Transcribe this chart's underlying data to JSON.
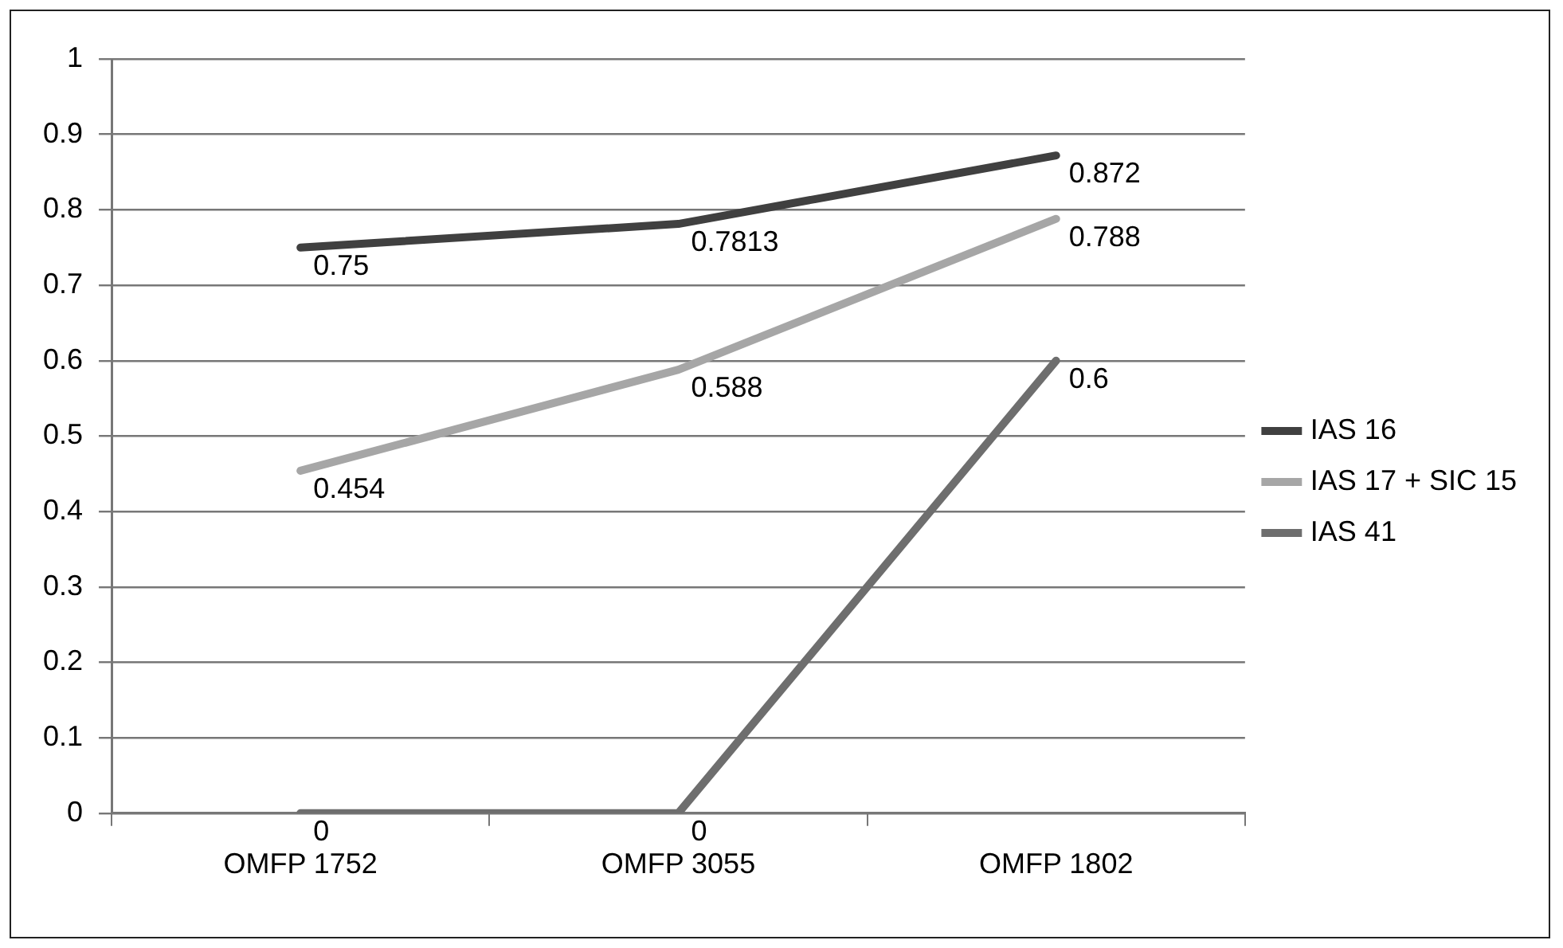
{
  "chart_data": {
    "type": "line",
    "categories": [
      "OMFP 1752",
      "OMFP 3055",
      "OMFP 1802"
    ],
    "series": [
      {
        "name": "IAS 16",
        "color": "#404040",
        "values": [
          0.75,
          0.7813,
          0.872
        ]
      },
      {
        "name": "IAS 17 + SIC 15",
        "color": "#a6a6a6",
        "values": [
          0.454,
          0.588,
          0.788
        ]
      },
      {
        "name": "IAS 41",
        "color": "#6e6e6e",
        "values": [
          0,
          0,
          0.6
        ]
      }
    ],
    "ylim": [
      0,
      1
    ],
    "yticks": [
      0,
      0.1,
      0.2,
      0.3,
      0.4,
      0.5,
      0.6,
      0.7,
      0.8,
      0.9,
      1
    ],
    "grid": "y",
    "legend": "right",
    "marker": "none",
    "line_style": "solid",
    "data_labels": true
  }
}
